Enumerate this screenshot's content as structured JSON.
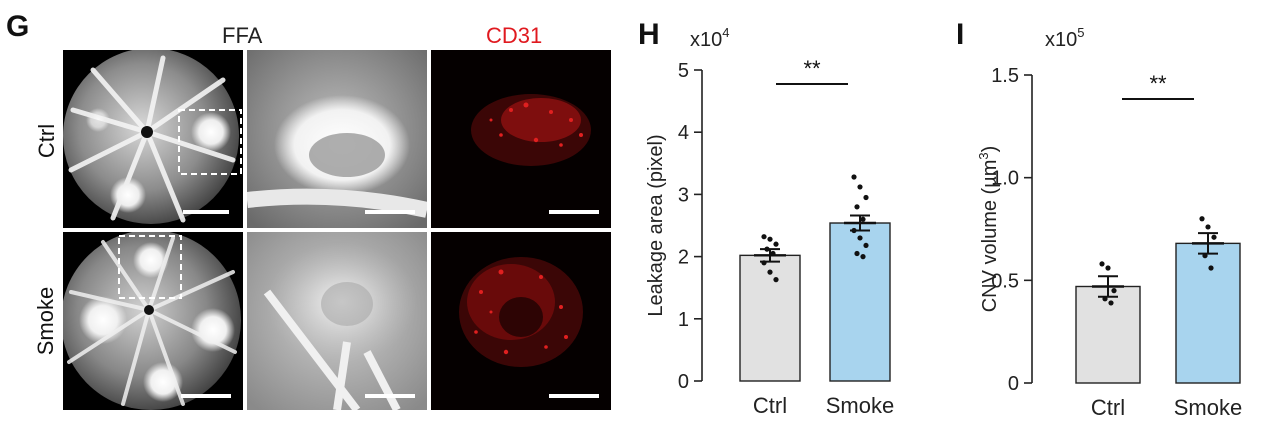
{
  "figure": {
    "panel_G": {
      "letter": "G",
      "header_ffa": "FFA",
      "header_cd31": "CD31",
      "row_labels": [
        "Ctrl",
        "Smoke"
      ]
    }
  },
  "chart_data": [
    {
      "panel": "H",
      "type": "bar",
      "multiplier_label": "x10",
      "multiplier_exp": "4",
      "categories": [
        "Ctrl",
        "Smoke"
      ],
      "values": [
        2.02,
        2.54
      ],
      "errors": [
        0.1,
        0.12
      ],
      "points": [
        [
          2.32,
          2.28,
          2.2,
          2.12,
          2.05,
          1.9,
          1.75,
          1.63
        ],
        [
          3.28,
          3.12,
          2.95,
          2.8,
          2.6,
          2.42,
          2.3,
          2.18,
          2.05,
          2.0
        ]
      ],
      "ylabel": "Leakage area (pixel)",
      "ylim": [
        0,
        5
      ],
      "yticks": [
        "0",
        "1",
        "2",
        "3",
        "4",
        "5"
      ],
      "significance": "**",
      "colors": [
        "#e1e1e1",
        "#a8d4ee"
      ]
    },
    {
      "panel": "I",
      "type": "bar",
      "multiplier_label": "x10",
      "multiplier_exp": "5",
      "categories": [
        "Ctrl",
        "Smoke"
      ],
      "values": [
        0.47,
        0.68
      ],
      "errors": [
        0.05,
        0.05
      ],
      "points": [
        [
          0.58,
          0.56,
          0.45,
          0.41,
          0.39
        ],
        [
          0.8,
          0.76,
          0.71,
          0.62,
          0.56
        ]
      ],
      "ylabel_main": "CNV volume (µm",
      "ylabel_exp": "3",
      "ylabel_close": ")",
      "ylim": [
        0,
        1.5
      ],
      "yticks": [
        "0",
        "0.5",
        "1.0",
        "1.5"
      ],
      "significance": "**",
      "colors": [
        "#e1e1e1",
        "#a8d4ee"
      ]
    }
  ]
}
